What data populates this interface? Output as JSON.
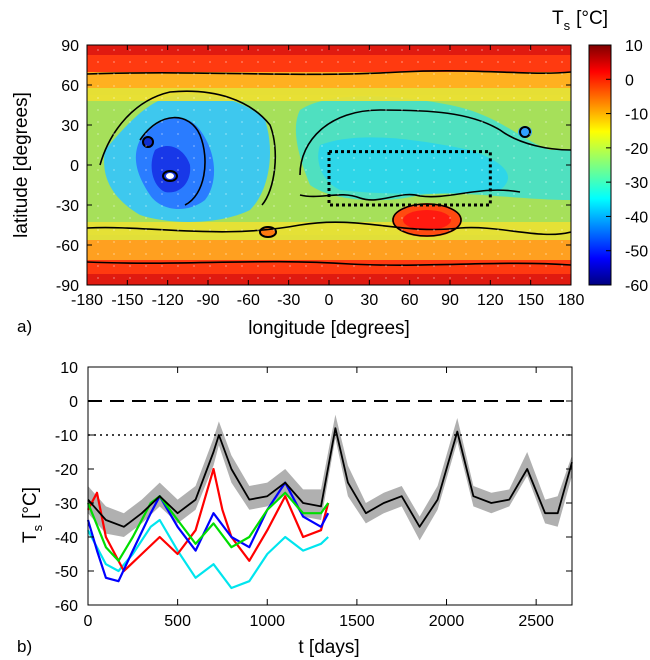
{
  "chart_data": [
    {
      "type": "heatmap",
      "panel_label": "a)",
      "xlabel": "longitude [degrees]",
      "ylabel": "latitude [degrees]",
      "xlim": [
        -180,
        180
      ],
      "ylim": [
        -90,
        90
      ],
      "xticks": [
        -180,
        -150,
        -120,
        -90,
        -60,
        -30,
        0,
        30,
        60,
        90,
        120,
        150,
        180
      ],
      "yticks": [
        -90,
        -60,
        -30,
        0,
        30,
        60,
        90
      ],
      "colorbar": {
        "title": "T",
        "title_sub": "s",
        "unit": "[°C]",
        "range": [
          -60,
          10
        ],
        "ticks": [
          10,
          0,
          -10,
          -20,
          -30,
          -40,
          -50,
          -60
        ],
        "colormap": "jet"
      },
      "dotted_box": {
        "lon": [
          0,
          120
        ],
        "lat": [
          -30,
          10
        ]
      },
      "grid": true
    },
    {
      "type": "line",
      "panel_label": "b)",
      "xlabel": "t [days]",
      "ylabel": "T",
      "ylabel_sub": "s",
      "ylabel_unit": "[°C]",
      "xlim": [
        0,
        2700
      ],
      "ylim": [
        -60,
        10
      ],
      "xticks": [
        0,
        500,
        1000,
        1500,
        2000,
        2500
      ],
      "yticks": [
        10,
        0,
        -10,
        -20,
        -30,
        -40,
        -50,
        -60
      ],
      "reference_lines": [
        {
          "y": 0,
          "style": "dashed",
          "color": "#000000"
        },
        {
          "y": -10,
          "style": "dotted",
          "color": "#000000"
        }
      ],
      "band": {
        "color": "#b0b0b0",
        "x": [
          0,
          100,
          200,
          300,
          400,
          500,
          600,
          700,
          730,
          800,
          900,
          1000,
          1100,
          1200,
          1300,
          1380,
          1450,
          1550,
          1650,
          1750,
          1850,
          1950,
          2060,
          2150,
          2250,
          2350,
          2450,
          2550,
          2620,
          2700
        ],
        "upper": [
          -25,
          -31,
          -33,
          -29,
          -24,
          -29,
          -25,
          -11,
          -6,
          -16,
          -25,
          -24,
          -20,
          -26,
          -26,
          -4,
          -19,
          -30,
          -27,
          -25,
          -34,
          -25,
          -5,
          -25,
          -27,
          -26,
          -15,
          -29,
          -28,
          -16
        ],
        "lower": [
          -33,
          -39,
          -40,
          -36,
          -31,
          -36,
          -32,
          -19,
          -13,
          -24,
          -32,
          -31,
          -27,
          -34,
          -35,
          -11,
          -28,
          -36,
          -33,
          -31,
          -41,
          -32,
          -12,
          -31,
          -33,
          -31,
          -22,
          -36,
          -37,
          -22
        ]
      },
      "series": [
        {
          "color": "#000000",
          "x": [
            0,
            100,
            200,
            300,
            400,
            500,
            600,
            700,
            730,
            800,
            900,
            1000,
            1100,
            1200,
            1300,
            1380,
            1450,
            1550,
            1650,
            1750,
            1850,
            1950,
            2060,
            2150,
            2250,
            2350,
            2450,
            2550,
            2620,
            2700
          ],
          "y": [
            -29,
            -35,
            -37,
            -33,
            -28,
            -33,
            -29,
            -15,
            -10,
            -20,
            -29,
            -28,
            -24,
            -30,
            -31,
            -8,
            -24,
            -33,
            -30,
            -28,
            -37,
            -29,
            -9,
            -28,
            -30,
            -29,
            -20,
            -33,
            -33,
            -18
          ]
        },
        {
          "color": "#ff0000",
          "x": [
            0,
            50,
            100,
            200,
            300,
            400,
            500,
            600,
            700,
            750,
            800,
            900,
            1000,
            1100,
            1200,
            1300,
            1340
          ],
          "y": [
            -32,
            -27,
            -40,
            -50,
            -45,
            -40,
            -45,
            -38,
            -20,
            -32,
            -40,
            -47,
            -38,
            -28,
            -40,
            -38,
            -30
          ]
        },
        {
          "color": "#0000ff",
          "x": [
            0,
            50,
            100,
            170,
            250,
            350,
            400,
            500,
            600,
            700,
            800,
            900,
            1000,
            1100,
            1200,
            1300,
            1340
          ],
          "y": [
            -35,
            -44,
            -52,
            -53,
            -44,
            -33,
            -28,
            -37,
            -44,
            -33,
            -40,
            -43,
            -32,
            -24,
            -34,
            -37,
            -33
          ]
        },
        {
          "color": "#00dd00",
          "x": [
            0,
            100,
            170,
            250,
            350,
            400,
            500,
            600,
            700,
            800,
            900,
            1000,
            1100,
            1200,
            1300,
            1340
          ],
          "y": [
            -30,
            -43,
            -47,
            -40,
            -30,
            -28,
            -35,
            -42,
            -36,
            -43,
            -40,
            -32,
            -27,
            -33,
            -33,
            -30
          ]
        },
        {
          "color": "#00e5ee",
          "x": [
            0,
            100,
            170,
            250,
            350,
            400,
            500,
            600,
            700,
            800,
            900,
            1000,
            1100,
            1200,
            1300,
            1340
          ],
          "y": [
            -38,
            -48,
            -50,
            -45,
            -37,
            -35,
            -44,
            -52,
            -48,
            -55,
            -53,
            -45,
            -40,
            -44,
            -42,
            -40
          ]
        }
      ]
    }
  ]
}
